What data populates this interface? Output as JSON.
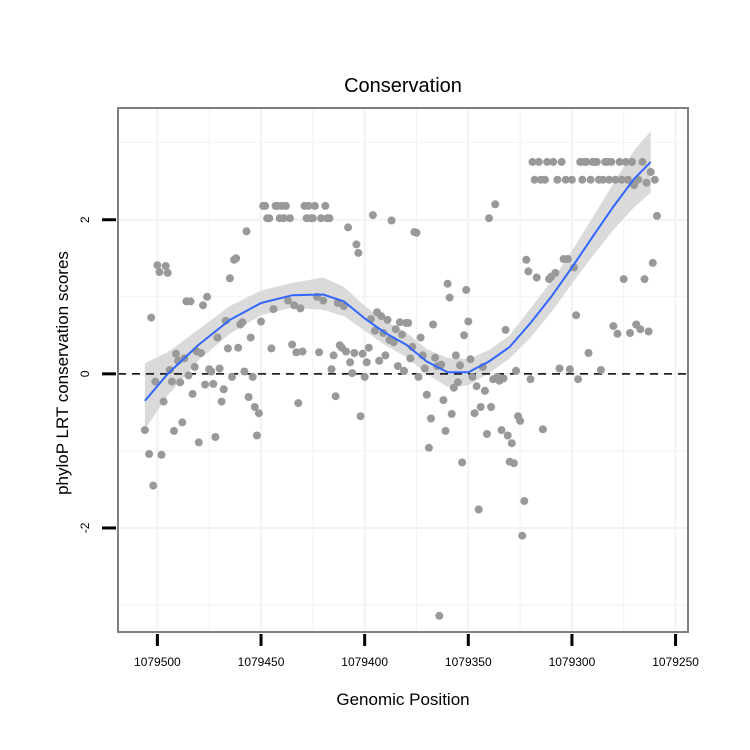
{
  "chart_data": {
    "type": "scatter",
    "title": "Conservation",
    "xlabel": "Genomic Position",
    "ylabel": "phyloP LRT conservation scores",
    "x_reversed": true,
    "xlim": [
      1079519,
      1079244
    ],
    "ylim": [
      -3.35,
      3.45
    ],
    "xticks": [
      1079500,
      1079450,
      1079400,
      1079350,
      1079300,
      1079250
    ],
    "xtick_labels": [
      "1079500",
      "1079450",
      "1079400",
      "1079350",
      "1079300",
      "1079250"
    ],
    "yticks": [
      2,
      0,
      -2
    ],
    "ytick_labels": [
      "2",
      "0",
      "-2"
    ],
    "reference_line": {
      "y": 0,
      "style": "dashed"
    },
    "grid": true,
    "colors": {
      "points": "#999999",
      "smooth_line": "#3366ff",
      "confidence_band": "#d6d6d6",
      "panel_border": "#7f7f7f",
      "grid": "#f2f2f2"
    },
    "points": [
      [
        1079506,
        -0.73
      ],
      [
        1079504,
        -1.04
      ],
      [
        1079503,
        0.73
      ],
      [
        1079502,
        -1.45
      ],
      [
        1079501,
        -0.1
      ],
      [
        1079500,
        1.41
      ],
      [
        1079499,
        1.32
      ],
      [
        1079498,
        -1.05
      ],
      [
        1079497,
        -0.36
      ],
      [
        1079496,
        1.4
      ],
      [
        1079495,
        1.31
      ],
      [
        1079494,
        0.05
      ],
      [
        1079493,
        -0.1
      ],
      [
        1079492,
        -0.74
      ],
      [
        1079491,
        0.26
      ],
      [
        1079490,
        0.17
      ],
      [
        1079489,
        -0.11
      ],
      [
        1079488,
        -0.63
      ],
      [
        1079487,
        0.2
      ],
      [
        1079486,
        0.94
      ],
      [
        1079485,
        -0.02
      ],
      [
        1079484,
        0.94
      ],
      [
        1079483,
        -0.26
      ],
      [
        1079482,
        0.09
      ],
      [
        1079481,
        0.29
      ],
      [
        1079480,
        -0.89
      ],
      [
        1079479,
        0.27
      ],
      [
        1079478,
        0.89
      ],
      [
        1079477,
        -0.14
      ],
      [
        1079476,
        1.0
      ],
      [
        1079475,
        0.06
      ],
      [
        1079474,
        0.03
      ],
      [
        1079473,
        -0.13
      ],
      [
        1079472,
        -0.82
      ],
      [
        1079471,
        0.47
      ],
      [
        1079470,
        0.07
      ],
      [
        1079469,
        -0.36
      ],
      [
        1079468,
        -0.2
      ],
      [
        1079467,
        0.69
      ],
      [
        1079466,
        0.33
      ],
      [
        1079465,
        1.24
      ],
      [
        1079464,
        -0.04
      ],
      [
        1079463,
        1.48
      ],
      [
        1079462,
        1.5
      ],
      [
        1079461,
        0.34
      ],
      [
        1079460,
        0.64
      ],
      [
        1079459,
        0.67
      ],
      [
        1079458,
        0.03
      ],
      [
        1079457,
        1.85
      ],
      [
        1079456,
        -0.3
      ],
      [
        1079455,
        0.47
      ],
      [
        1079454,
        -0.04
      ],
      [
        1079453,
        -0.43
      ],
      [
        1079452,
        -0.8
      ],
      [
        1079451,
        -0.51
      ],
      [
        1079450,
        0.68
      ],
      [
        1079449,
        2.18
      ],
      [
        1079448,
        2.18
      ],
      [
        1079447,
        2.02
      ],
      [
        1079446,
        2.02
      ],
      [
        1079445,
        0.33
      ],
      [
        1079444,
        0.84
      ],
      [
        1079443,
        2.18
      ],
      [
        1079442,
        2.18
      ],
      [
        1079441,
        2.02
      ],
      [
        1079440,
        2.18
      ],
      [
        1079439,
        2.02
      ],
      [
        1079438,
        2.18
      ],
      [
        1079437,
        0.95
      ],
      [
        1079436,
        2.02
      ],
      [
        1079435,
        0.38
      ],
      [
        1079434,
        0.89
      ],
      [
        1079433,
        0.28
      ],
      [
        1079432,
        -0.38
      ],
      [
        1079431,
        0.85
      ],
      [
        1079430,
        0.29
      ],
      [
        1079429,
        2.18
      ],
      [
        1079428,
        2.02
      ],
      [
        1079427,
        2.18
      ],
      [
        1079426,
        2.02
      ],
      [
        1079425,
        2.02
      ],
      [
        1079424,
        2.18
      ],
      [
        1079423,
        1.0
      ],
      [
        1079422,
        0.28
      ],
      [
        1079421,
        2.02
      ],
      [
        1079420,
        0.95
      ],
      [
        1079419,
        2.18
      ],
      [
        1079418,
        2.02
      ],
      [
        1079417,
        2.02
      ],
      [
        1079416,
        0.06
      ],
      [
        1079415,
        0.24
      ],
      [
        1079414,
        -0.29
      ],
      [
        1079413,
        0.92
      ],
      [
        1079412,
        0.37
      ],
      [
        1079411,
        0.34
      ],
      [
        1079410,
        0.88
      ],
      [
        1079409,
        0.29
      ],
      [
        1079408,
        1.9
      ],
      [
        1079407,
        0.15
      ],
      [
        1079406,
        0.01
      ],
      [
        1079405,
        0.27
      ],
      [
        1079404,
        1.68
      ],
      [
        1079403,
        1.57
      ],
      [
        1079402,
        -0.55
      ],
      [
        1079401,
        0.26
      ],
      [
        1079400,
        -0.04
      ],
      [
        1079399,
        0.15
      ],
      [
        1079398,
        0.34
      ],
      [
        1079397,
        0.71
      ],
      [
        1079396,
        2.06
      ],
      [
        1079395,
        0.56
      ],
      [
        1079394,
        0.8
      ],
      [
        1079393,
        0.17
      ],
      [
        1079392,
        0.75
      ],
      [
        1079391,
        0.53
      ],
      [
        1079390,
        0.24
      ],
      [
        1079389,
        0.7
      ],
      [
        1079388,
        0.44
      ],
      [
        1079387,
        1.99
      ],
      [
        1079386,
        0.41
      ],
      [
        1079385,
        0.58
      ],
      [
        1079384,
        0.1
      ],
      [
        1079383,
        0.67
      ],
      [
        1079382,
        0.51
      ],
      [
        1079381,
        0.04
      ],
      [
        1079380,
        0.66
      ],
      [
        1079379,
        0.66
      ],
      [
        1079378,
        0.2
      ],
      [
        1079377,
        0.35
      ],
      [
        1079376,
        1.84
      ],
      [
        1079375,
        1.83
      ],
      [
        1079374,
        -0.04
      ],
      [
        1079373,
        0.47
      ],
      [
        1079372,
        0.24
      ],
      [
        1079371,
        0.07
      ],
      [
        1079370,
        -0.27
      ],
      [
        1079369,
        -0.96
      ],
      [
        1079368,
        -0.58
      ],
      [
        1079367,
        0.64
      ],
      [
        1079366,
        0.21
      ],
      [
        1079365,
        0.1
      ],
      [
        1079364,
        -3.14
      ],
      [
        1079363,
        0.12
      ],
      [
        1079362,
        -0.34
      ],
      [
        1079361,
        -0.74
      ],
      [
        1079360,
        1.17
      ],
      [
        1079359,
        0.99
      ],
      [
        1079358,
        -0.52
      ],
      [
        1079357,
        -0.18
      ],
      [
        1079356,
        0.24
      ],
      [
        1079355,
        -0.11
      ],
      [
        1079354,
        0.11
      ],
      [
        1079353,
        -1.15
      ],
      [
        1079352,
        0.5
      ],
      [
        1079351,
        1.09
      ],
      [
        1079350,
        0.68
      ],
      [
        1079349,
        0.19
      ],
      [
        1079348,
        -0.04
      ],
      [
        1079347,
        -0.51
      ],
      [
        1079346,
        -0.16
      ],
      [
        1079345,
        -1.76
      ],
      [
        1079344,
        -0.43
      ],
      [
        1079343,
        0.09
      ],
      [
        1079342,
        -0.22
      ],
      [
        1079341,
        -0.78
      ],
      [
        1079340,
        2.02
      ],
      [
        1079339,
        -0.43
      ],
      [
        1079338,
        -0.07
      ],
      [
        1079337,
        2.2
      ],
      [
        1079336,
        -0.04
      ],
      [
        1079335,
        -0.09
      ],
      [
        1079334,
        -0.73
      ],
      [
        1079333,
        -0.06
      ],
      [
        1079332,
        0.57
      ],
      [
        1079331,
        -0.8
      ],
      [
        1079330,
        -1.14
      ],
      [
        1079329,
        -0.9
      ],
      [
        1079328,
        -1.16
      ],
      [
        1079327,
        0.04
      ],
      [
        1079326,
        -0.55
      ],
      [
        1079325,
        -0.61
      ],
      [
        1079324,
        -2.1
      ],
      [
        1079323,
        -1.65
      ],
      [
        1079322,
        1.48
      ],
      [
        1079321,
        1.33
      ],
      [
        1079320,
        -0.07
      ],
      [
        1079319,
        2.75
      ],
      [
        1079318,
        2.52
      ],
      [
        1079317,
        1.25
      ],
      [
        1079316,
        2.75
      ],
      [
        1079315,
        2.52
      ],
      [
        1079314,
        -0.72
      ],
      [
        1079313,
        2.52
      ],
      [
        1079312,
        2.75
      ],
      [
        1079311,
        1.23
      ],
      [
        1079310,
        1.26
      ],
      [
        1079309,
        2.75
      ],
      [
        1079308,
        1.31
      ],
      [
        1079307,
        2.52
      ],
      [
        1079306,
        0.07
      ],
      [
        1079305,
        2.75
      ],
      [
        1079304,
        1.49
      ],
      [
        1079303,
        2.52
      ],
      [
        1079302,
        1.49
      ],
      [
        1079301,
        0.06
      ],
      [
        1079300,
        2.52
      ],
      [
        1079299,
        1.38
      ],
      [
        1079298,
        0.76
      ],
      [
        1079297,
        -0.07
      ],
      [
        1079296,
        2.75
      ],
      [
        1079295,
        2.52
      ],
      [
        1079294,
        2.75
      ],
      [
        1079293,
        2.75
      ],
      [
        1079292,
        0.27
      ],
      [
        1079291,
        2.52
      ],
      [
        1079290,
        2.75
      ],
      [
        1079289,
        2.75
      ],
      [
        1079288,
        2.75
      ],
      [
        1079287,
        2.52
      ],
      [
        1079286,
        0.05
      ],
      [
        1079285,
        2.52
      ],
      [
        1079284,
        2.75
      ],
      [
        1079283,
        2.75
      ],
      [
        1079282,
        2.52
      ],
      [
        1079281,
        2.75
      ],
      [
        1079280,
        0.62
      ],
      [
        1079279,
        2.52
      ],
      [
        1079278,
        0.52
      ],
      [
        1079277,
        2.75
      ],
      [
        1079276,
        2.52
      ],
      [
        1079275,
        1.23
      ],
      [
        1079274,
        2.75
      ],
      [
        1079273,
        2.52
      ],
      [
        1079272,
        0.53
      ],
      [
        1079271,
        2.75
      ],
      [
        1079270,
        2.45
      ],
      [
        1079269,
        0.64
      ],
      [
        1079268,
        2.52
      ],
      [
        1079267,
        0.58
      ],
      [
        1079266,
        2.75
      ],
      [
        1079265,
        1.23
      ],
      [
        1079264,
        2.48
      ],
      [
        1079263,
        0.55
      ],
      [
        1079262,
        2.62
      ],
      [
        1079261,
        1.44
      ],
      [
        1079260,
        2.52
      ],
      [
        1079259,
        2.05
      ]
    ],
    "smooth": {
      "x": [
        1079506,
        1079495,
        1079480,
        1079465,
        1079450,
        1079435,
        1079420,
        1079410,
        1079400,
        1079390,
        1079380,
        1079370,
        1079360,
        1079350,
        1079340,
        1079330,
        1079320,
        1079310,
        1079300,
        1079290,
        1079280,
        1079270,
        1079262
      ],
      "y": [
        -0.35,
        0.0,
        0.38,
        0.7,
        0.92,
        1.02,
        1.03,
        0.94,
        0.72,
        0.53,
        0.38,
        0.16,
        0.02,
        0.02,
        0.16,
        0.35,
        0.66,
        1.0,
        1.38,
        1.78,
        2.17,
        2.53,
        2.75
      ],
      "upper": [
        0.14,
        0.28,
        0.58,
        0.88,
        1.08,
        1.18,
        1.25,
        1.13,
        0.88,
        0.69,
        0.54,
        0.32,
        0.21,
        0.19,
        0.31,
        0.5,
        0.85,
        1.2,
        1.59,
        2.03,
        2.47,
        2.9,
        3.15
      ],
      "lower": [
        -0.72,
        -0.28,
        0.18,
        0.52,
        0.76,
        0.86,
        0.83,
        0.75,
        0.56,
        0.37,
        0.22,
        0.0,
        -0.17,
        -0.15,
        0.01,
        0.2,
        0.47,
        0.8,
        1.17,
        1.53,
        1.87,
        2.16,
        2.35
      ]
    }
  }
}
